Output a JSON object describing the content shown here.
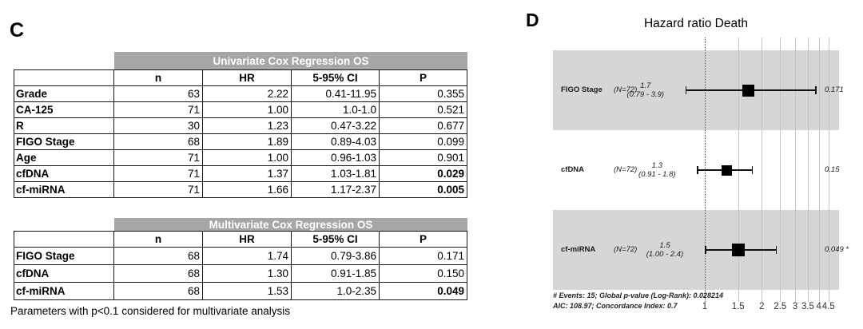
{
  "panels": {
    "c": {
      "label": "C",
      "univariate": {
        "title": "Univariate Cox Regression OS",
        "columns": [
          "n",
          "HR",
          "5-95% CI",
          "P"
        ],
        "rows": [
          {
            "label": "Grade",
            "n": "63",
            "hr": "2.22",
            "ci": "0.41-11.95",
            "p": "0.355",
            "bold_p": false
          },
          {
            "label": "CA-125",
            "n": "71",
            "hr": "1.00",
            "ci": "1.0-1.0",
            "p": "0.521",
            "bold_p": false
          },
          {
            "label": "R",
            "n": "30",
            "hr": "1.23",
            "ci": "0.47-3.22",
            "p": "0.677",
            "bold_p": false
          },
          {
            "label": "FIGO Stage",
            "n": "68",
            "hr": "1.89",
            "ci": "0.89-4.03",
            "p": "0.099",
            "bold_p": false
          },
          {
            "label": "Age",
            "n": "71",
            "hr": "1.00",
            "ci": "0.96-1.03",
            "p": "0.901",
            "bold_p": false
          },
          {
            "label": "cfDNA",
            "n": "71",
            "hr": "1.37",
            "ci": "1.03-1.81",
            "p": "0.029",
            "bold_p": true
          },
          {
            "label": "cf-miRNA",
            "n": "71",
            "hr": "1.66",
            "ci": "1.17-2.37",
            "p": "0.005",
            "bold_p": true
          }
        ]
      },
      "multivariate": {
        "title": "Multivariate Cox Regression OS",
        "columns": [
          "n",
          "HR",
          "5-95% CI",
          "P"
        ],
        "rows": [
          {
            "label": "FIGO Stage",
            "n": "68",
            "hr": "1.74",
            "ci": "0.79-3.86",
            "p": "0.171",
            "bold_p": false
          },
          {
            "label": "cfDNA",
            "n": "68",
            "hr": "1.30",
            "ci": "0.91-1.85",
            "p": "0.150",
            "bold_p": false
          },
          {
            "label": "cf-miRNA",
            "n": "68",
            "hr": "1.53",
            "ci": "1.0-2.35",
            "p": "0.049",
            "bold_p": true
          }
        ]
      },
      "footnote": "Parameters with p<0.1 considered for multivariate analysis"
    },
    "d": {
      "label": "D",
      "title": "Hazard ratio Death",
      "rows": [
        {
          "label": "FIGO Stage",
          "n_text": "(N=72)",
          "hr_text": "1.7",
          "ci_text": "(0.79 - 3.9)",
          "hr": 1.7,
          "lo": 0.79,
          "hi": 3.9,
          "p": "0.171",
          "shaded": true,
          "marker": 15
        },
        {
          "label": "cfDNA",
          "n_text": "(N=72)",
          "hr_text": "1.3",
          "ci_text": "(0.91 - 1.8)",
          "hr": 1.3,
          "lo": 0.91,
          "hi": 1.8,
          "p": "0.15",
          "shaded": false,
          "marker": 13
        },
        {
          "label": "cf-miRNA",
          "n_text": "(N=72)",
          "hr_text": "1.5",
          "ci_text": "(1.00 - 2.4)",
          "hr": 1.5,
          "lo": 1.0,
          "hi": 2.4,
          "p": "0.049 *",
          "shaded": true,
          "marker": 16
        }
      ],
      "footer_line1": "# Events: 15; Global p-value (Log-Rank): 0.028214",
      "footer_line2": "AIC: 108.97; Concordance Index: 0.7",
      "ticks": [
        "1",
        "1.5",
        "2",
        "2.5",
        "3",
        "3.5",
        "4",
        "4.5"
      ],
      "reference_value": 1
    }
  },
  "chart_data": [
    {
      "type": "table",
      "title": "Univariate Cox Regression OS",
      "columns": [
        "",
        "n",
        "HR",
        "5-95% CI",
        "P"
      ],
      "rows": [
        [
          "Grade",
          63,
          2.22,
          "0.41-11.95",
          0.355
        ],
        [
          "CA-125",
          71,
          1.0,
          "1.0-1.0",
          0.521
        ],
        [
          "R",
          30,
          1.23,
          "0.47-3.22",
          0.677
        ],
        [
          "FIGO Stage",
          68,
          1.89,
          "0.89-4.03",
          0.099
        ],
        [
          "Age",
          71,
          1.0,
          "0.96-1.03",
          0.901
        ],
        [
          "cfDNA",
          71,
          1.37,
          "1.03-1.81",
          0.029
        ],
        [
          "cf-miRNA",
          71,
          1.66,
          "1.17-2.37",
          0.005
        ]
      ],
      "bold_p_rows": [
        "cfDNA",
        "cf-miRNA"
      ],
      "footnote": "Parameters with p<0.1 considered for multivariate analysis"
    },
    {
      "type": "table",
      "title": "Multivariate Cox Regression OS",
      "columns": [
        "",
        "n",
        "HR",
        "5-95% CI",
        "P"
      ],
      "rows": [
        [
          "FIGO Stage",
          68,
          1.74,
          "0.79-3.86",
          0.171
        ],
        [
          "cfDNA",
          68,
          1.3,
          "0.91-1.85",
          0.15
        ],
        [
          "cf-miRNA",
          68,
          1.53,
          "1.0-2.35",
          0.049
        ]
      ],
      "bold_p_rows": [
        "cf-miRNA"
      ]
    },
    {
      "type": "scatter",
      "subtype": "forest-plot",
      "title": "Hazard ratio Death",
      "xscale": "log",
      "xticks": [
        1,
        1.5,
        2,
        2.5,
        3,
        3.5,
        4,
        4.5
      ],
      "xlim": [
        0.75,
        4.6
      ],
      "reference_x": 1,
      "legend_position": "none",
      "grid": true,
      "series": [
        {
          "name": "FIGO Stage",
          "n": 72,
          "hr": 1.7,
          "ci": [
            0.79,
            3.9
          ],
          "p": "0.171"
        },
        {
          "name": "cfDNA",
          "n": 72,
          "hr": 1.3,
          "ci": [
            0.91,
            1.8
          ],
          "p": "0.15"
        },
        {
          "name": "cf-miRNA",
          "n": 72,
          "hr": 1.5,
          "ci": [
            1.0,
            2.4
          ],
          "p": "0.049 *"
        }
      ],
      "annotations": [
        "# Events: 15; Global p-value (Log-Rank): 0.028214",
        "AIC: 108.97; Concordance Index: 0.7"
      ]
    }
  ],
  "colors": {
    "table_header_gray": "#a6a6a6",
    "band_gray": "#d6d6d6",
    "grid_gray": "#c3c3c3",
    "text": "#000000"
  }
}
